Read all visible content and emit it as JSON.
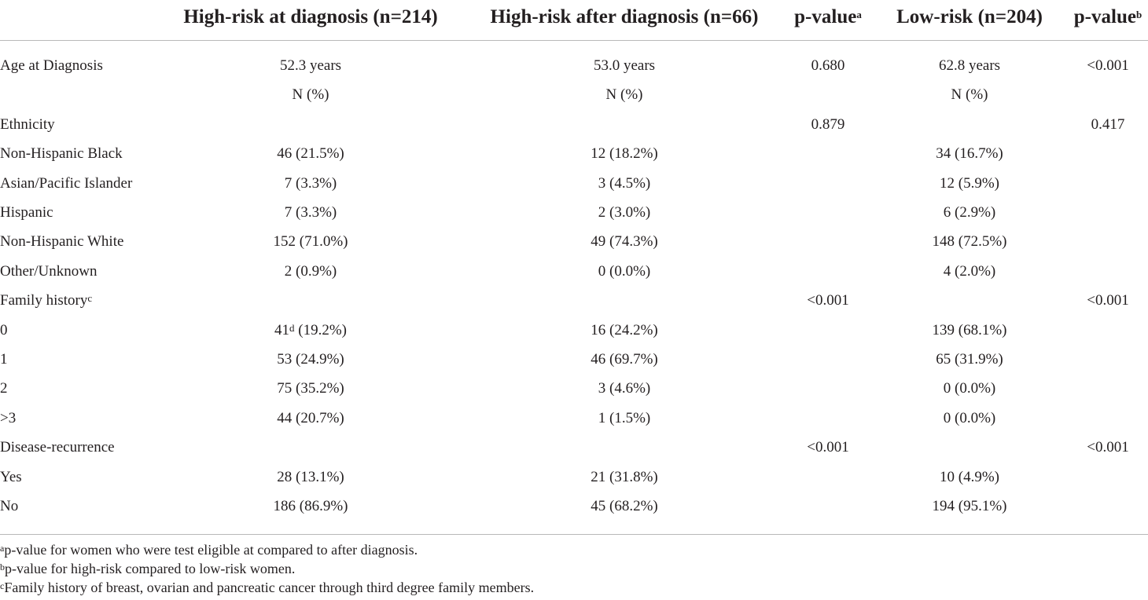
{
  "header": {
    "col1": "High-risk at diagnosis (n=214)",
    "col2": "High-risk after diagnosis (n=66)",
    "col3": "p-value",
    "col3_sup": "a",
    "col4": "Low-risk (n=204)",
    "col5": "p-value",
    "col5_sup": "b"
  },
  "rows": [
    {
      "label": "Age at Diagnosis",
      "label_sup": "",
      "c1": "52.3 years",
      "c1_sup": "",
      "c1_rest": "",
      "c2": "53.0 years",
      "c3": "0.680",
      "c4": "62.8 years",
      "c5": "<0.001"
    },
    {
      "label": "",
      "label_sup": "",
      "c1": "N (%)",
      "c1_sup": "",
      "c1_rest": "",
      "c2": "N (%)",
      "c3": "",
      "c4": "N (%)",
      "c5": ""
    },
    {
      "label": "Ethnicity",
      "label_sup": "",
      "c1": "",
      "c1_sup": "",
      "c1_rest": "",
      "c2": "",
      "c3": "0.879",
      "c4": "",
      "c5": "0.417"
    },
    {
      "label": "Non-Hispanic Black",
      "label_sup": "",
      "c1": "46 (21.5%)",
      "c1_sup": "",
      "c1_rest": "",
      "c2": "12 (18.2%)",
      "c3": "",
      "c4": "34 (16.7%)",
      "c5": ""
    },
    {
      "label": "Asian/Pacific Islander",
      "label_sup": "",
      "c1": "7 (3.3%)",
      "c1_sup": "",
      "c1_rest": "",
      "c2": "3 (4.5%)",
      "c3": "",
      "c4": "12 (5.9%)",
      "c5": ""
    },
    {
      "label": "Hispanic",
      "label_sup": "",
      "c1": "7 (3.3%)",
      "c1_sup": "",
      "c1_rest": "",
      "c2": "2 (3.0%)",
      "c3": "",
      "c4": "6 (2.9%)",
      "c5": ""
    },
    {
      "label": "Non-Hispanic White",
      "label_sup": "",
      "c1": "152 (71.0%)",
      "c1_sup": "",
      "c1_rest": "",
      "c2": "49 (74.3%)",
      "c3": "",
      "c4": "148 (72.5%)",
      "c5": ""
    },
    {
      "label": "Other/Unknown",
      "label_sup": "",
      "c1": "2 (0.9%)",
      "c1_sup": "",
      "c1_rest": "",
      "c2": "0 (0.0%)",
      "c3": "",
      "c4": "4 (2.0%)",
      "c5": ""
    },
    {
      "label": "Family history",
      "label_sup": "c",
      "c1": "",
      "c1_sup": "",
      "c1_rest": "",
      "c2": "",
      "c3": "<0.001",
      "c4": "",
      "c5": "<0.001"
    },
    {
      "label": "0",
      "label_sup": "",
      "c1": "41",
      "c1_sup": "d",
      "c1_rest": " (19.2%)",
      "c2": "16 (24.2%)",
      "c3": "",
      "c4": "139 (68.1%)",
      "c5": ""
    },
    {
      "label": "1",
      "label_sup": "",
      "c1": "53 (24.9%)",
      "c1_sup": "",
      "c1_rest": "",
      "c2": "46 (69.7%)",
      "c3": "",
      "c4": "65 (31.9%)",
      "c5": ""
    },
    {
      "label": "2",
      "label_sup": "",
      "c1": "75 (35.2%)",
      "c1_sup": "",
      "c1_rest": "",
      "c2": "3 (4.6%)",
      "c3": "",
      "c4": "0 (0.0%)",
      "c5": ""
    },
    {
      "label": ">3",
      "label_sup": "",
      "c1": "44 (20.7%)",
      "c1_sup": "",
      "c1_rest": "",
      "c2": "1 (1.5%)",
      "c3": "",
      "c4": "0 (0.0%)",
      "c5": ""
    },
    {
      "label": "Disease-recurrence",
      "label_sup": "",
      "c1": "",
      "c1_sup": "",
      "c1_rest": "",
      "c2": "",
      "c3": "<0.001",
      "c4": "",
      "c5": "<0.001"
    },
    {
      "label": "Yes",
      "label_sup": "",
      "c1": "28 (13.1%)",
      "c1_sup": "",
      "c1_rest": "",
      "c2": "21 (31.8%)",
      "c3": "",
      "c4": "10 (4.9%)",
      "c5": ""
    },
    {
      "label": "No",
      "label_sup": "",
      "c1": "186 (86.9%)",
      "c1_sup": "",
      "c1_rest": "",
      "c2": "45 (68.2%)",
      "c3": "",
      "c4": "194 (95.1%)",
      "c5": ""
    }
  ],
  "footnotes": [
    {
      "sup": "a",
      "text": "p-value for women who were test eligible at compared to after diagnosis."
    },
    {
      "sup": "b",
      "text": "p-value for high-risk compared to low-risk women."
    },
    {
      "sup": "c",
      "text": "Family history of breast, ovarian and pancreatic cancer through third degree family members."
    }
  ]
}
